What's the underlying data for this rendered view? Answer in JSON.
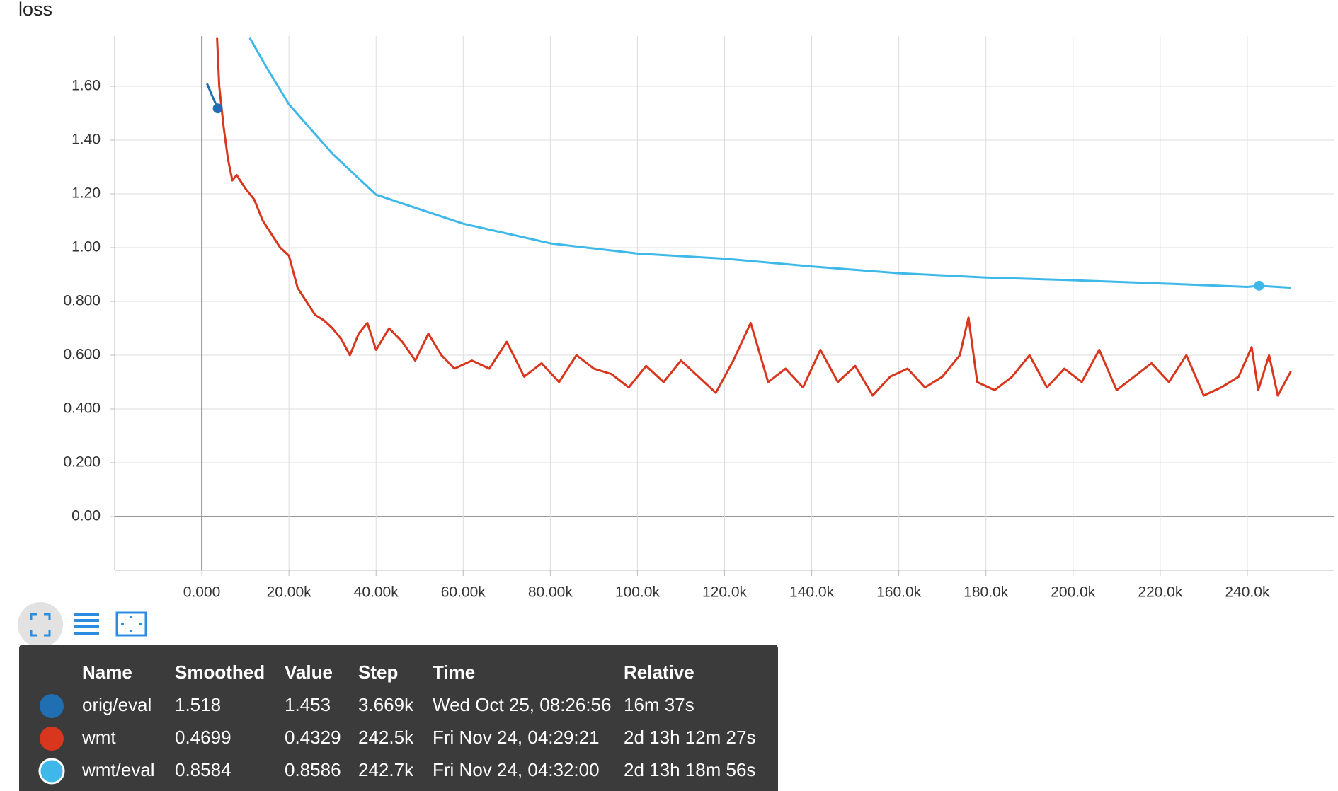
{
  "chart_data": {
    "type": "line",
    "title": "loss",
    "xlim": [
      -20000,
      260000
    ],
    "xticks": [
      {
        "value": 0,
        "label": "0.000"
      },
      {
        "value": 20000,
        "label": "20.00k"
      },
      {
        "value": 40000,
        "label": "40.00k"
      },
      {
        "value": 60000,
        "label": "60.00k"
      },
      {
        "value": 80000,
        "label": "80.00k"
      },
      {
        "value": 100000,
        "label": "100.0k"
      },
      {
        "value": 120000,
        "label": "120.0k"
      },
      {
        "value": 140000,
        "label": "140.0k"
      },
      {
        "value": 160000,
        "label": "160.0k"
      },
      {
        "value": 180000,
        "label": "180.0k"
      },
      {
        "value": 200000,
        "label": "200.0k"
      },
      {
        "value": 220000,
        "label": "220.0k"
      },
      {
        "value": 240000,
        "label": "240.0k"
      }
    ],
    "ylim": [
      -0.2,
      1.787
    ],
    "yticks": [
      {
        "value": 0,
        "label": "0.00"
      },
      {
        "value": 0.2,
        "label": "0.200"
      },
      {
        "value": 0.4,
        "label": "0.400"
      },
      {
        "value": 0.6,
        "label": "0.600"
      },
      {
        "value": 0.8,
        "label": "0.800"
      },
      {
        "value": 1.0,
        "label": "1.00"
      },
      {
        "value": 1.2,
        "label": "1.20"
      },
      {
        "value": 1.4,
        "label": "1.40"
      },
      {
        "value": 1.6,
        "label": "1.60"
      }
    ],
    "grid": true,
    "series": [
      {
        "name": "orig/eval",
        "color": "#1f6fb2",
        "x": [
          1200,
          2500,
          3669
        ],
        "values": [
          1.61,
          1.56,
          1.518
        ]
      },
      {
        "name": "wmt",
        "color": "#d8361d",
        "x": [
          3500,
          4000,
          5000,
          6000,
          7000,
          8000,
          10000,
          12000,
          14000,
          16000,
          18000,
          20000,
          22000,
          24000,
          26000,
          28000,
          30000,
          32000,
          34000,
          36000,
          38000,
          40000,
          43000,
          46000,
          49000,
          52000,
          55000,
          58000,
          62000,
          66000,
          70000,
          74000,
          78000,
          82000,
          86000,
          90000,
          94000,
          98000,
          102000,
          106000,
          110000,
          114000,
          118000,
          122000,
          126000,
          130000,
          134000,
          138000,
          142000,
          146000,
          150000,
          154000,
          158000,
          162000,
          166000,
          170000,
          174000,
          176000,
          178000,
          182000,
          186000,
          190000,
          194000,
          198000,
          202000,
          206000,
          210000,
          214000,
          218000,
          222000,
          226000,
          230000,
          234000,
          238000,
          241000,
          242500,
          245000,
          247000,
          250000
        ],
        "values": [
          1.78,
          1.6,
          1.45,
          1.33,
          1.25,
          1.27,
          1.22,
          1.18,
          1.1,
          1.05,
          1.0,
          0.97,
          0.85,
          0.8,
          0.75,
          0.73,
          0.7,
          0.66,
          0.6,
          0.68,
          0.72,
          0.62,
          0.7,
          0.65,
          0.58,
          0.68,
          0.6,
          0.55,
          0.58,
          0.55,
          0.65,
          0.52,
          0.57,
          0.5,
          0.6,
          0.55,
          0.53,
          0.48,
          0.56,
          0.5,
          0.58,
          0.52,
          0.46,
          0.58,
          0.72,
          0.5,
          0.55,
          0.48,
          0.62,
          0.5,
          0.56,
          0.45,
          0.52,
          0.55,
          0.48,
          0.52,
          0.6,
          0.74,
          0.5,
          0.47,
          0.52,
          0.6,
          0.48,
          0.55,
          0.5,
          0.62,
          0.47,
          0.52,
          0.57,
          0.5,
          0.6,
          0.45,
          0.48,
          0.52,
          0.63,
          0.4699,
          0.6,
          0.45,
          0.54
        ]
      },
      {
        "name": "wmt/eval",
        "color": "#3db8e8",
        "x": [
          11000,
          15000,
          20000,
          30000,
          40000,
          60000,
          80000,
          100000,
          120000,
          140000,
          160000,
          180000,
          200000,
          220000,
          240000,
          242700,
          250000
        ],
        "values": [
          1.78,
          1.667,
          1.533,
          1.349,
          1.197,
          1.089,
          1.016,
          0.978,
          0.959,
          0.93,
          0.905,
          0.889,
          0.879,
          0.867,
          0.854,
          0.8584,
          0.851
        ]
      }
    ]
  },
  "tooltip": {
    "headers": [
      "Name",
      "Smoothed",
      "Value",
      "Step",
      "Time",
      "Relative"
    ],
    "rows": [
      [
        "orig/eval",
        "1.518",
        "1.453",
        "3.669k",
        "Wed Oct 25, 08:26:56",
        "16m 37s"
      ],
      [
        "wmt",
        "0.4699",
        "0.4329",
        "242.5k",
        "Fri Nov 24, 04:29:21",
        "2d 13h 12m 27s"
      ],
      [
        "wmt/eval",
        "0.8584",
        "0.8586",
        "242.7k",
        "Fri Nov 24, 04:32:00",
        "2d 13h 18m 56s"
      ]
    ]
  }
}
